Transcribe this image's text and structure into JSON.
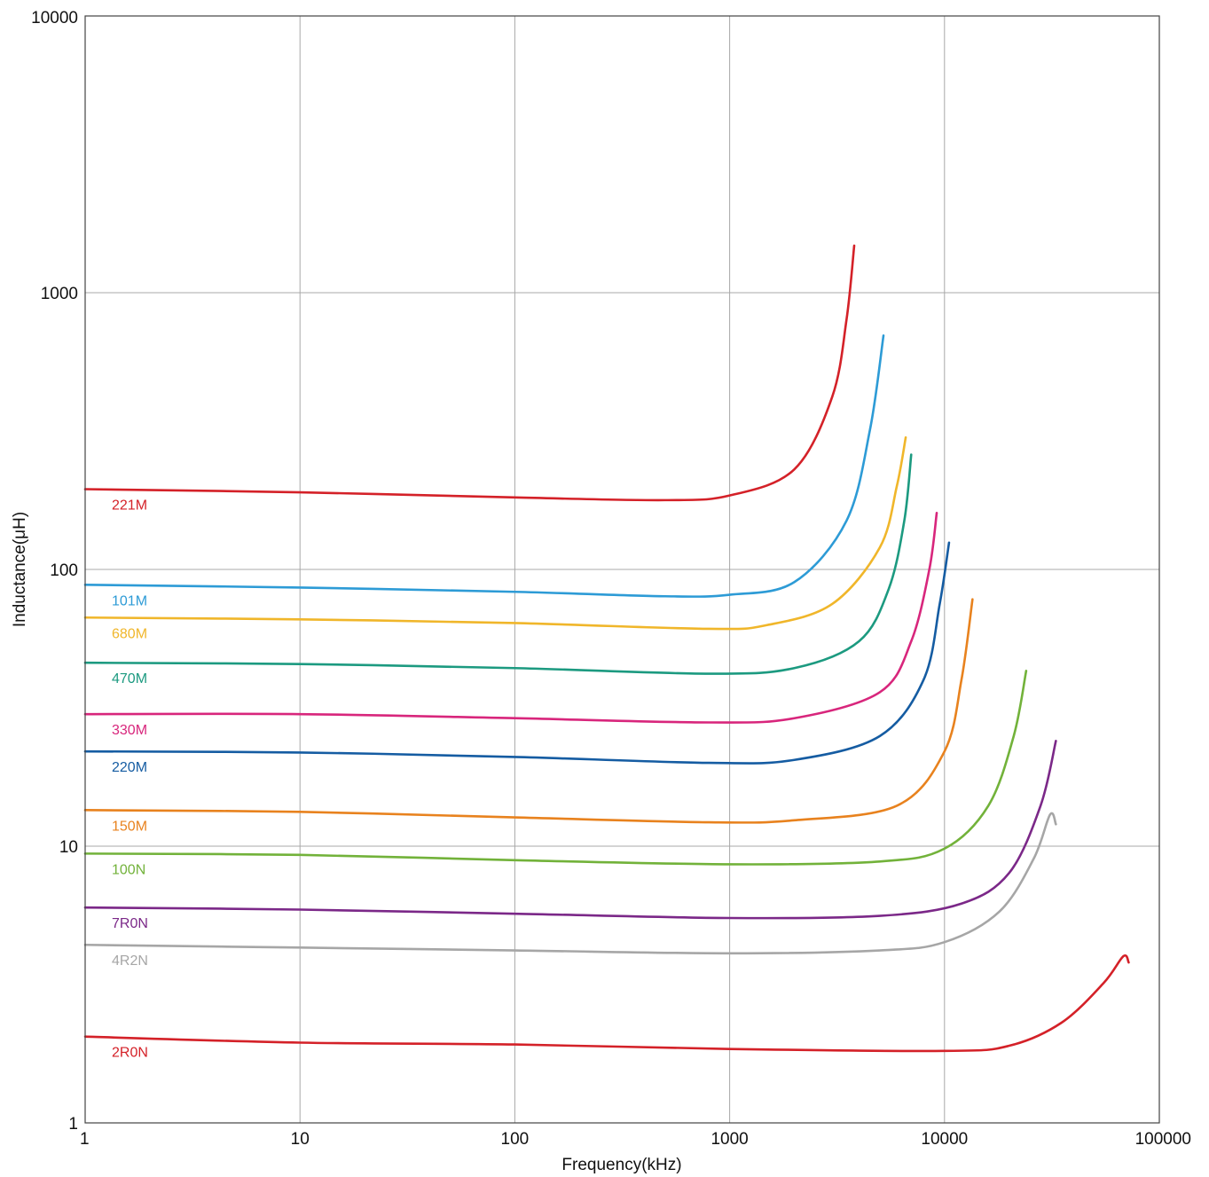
{
  "chart_data": {
    "type": "line",
    "xlabel": "Frequency(kHz)",
    "ylabel": "Inductance(μH)",
    "x_scale": "log",
    "y_scale": "log",
    "xlim": [
      1,
      100000
    ],
    "ylim": [
      1,
      10000
    ],
    "x_ticks": [
      "1",
      "10",
      "100",
      "1000",
      "10000",
      "100000"
    ],
    "y_ticks": [
      "1",
      "10",
      "100",
      "1000",
      "10000"
    ],
    "grid": true,
    "series": [
      {
        "name": "221M",
        "color": "#d42128",
        "x": [
          1,
          10,
          100,
          500,
          1000,
          2000,
          3000,
          3500,
          3800
        ],
        "y": [
          195,
          190,
          182,
          178,
          185,
          230,
          420,
          800,
          1480
        ]
      },
      {
        "name": "101M",
        "color": "#2d9bd6",
        "x": [
          1,
          10,
          100,
          500,
          1000,
          2000,
          3500,
          4500,
          5200
        ],
        "y": [
          88,
          86,
          83,
          80,
          81,
          90,
          150,
          320,
          700
        ]
      },
      {
        "name": "680M",
        "color": "#f0b62a",
        "x": [
          1,
          10,
          100,
          800,
          1500,
          3000,
          5000,
          6000,
          6600
        ],
        "y": [
          67,
          66,
          64,
          61,
          63,
          75,
          120,
          200,
          300
        ]
      },
      {
        "name": "470M",
        "color": "#1c9a80",
        "x": [
          1,
          10,
          100,
          800,
          2000,
          4000,
          5500,
          6500,
          7000
        ],
        "y": [
          46,
          45.5,
          44,
          42,
          44,
          55,
          85,
          150,
          260
        ]
      },
      {
        "name": "330M",
        "color": "#d8267c",
        "x": [
          1,
          10,
          100,
          800,
          2000,
          5000,
          7000,
          8500,
          9200
        ],
        "y": [
          30,
          30,
          29,
          28,
          29,
          36,
          55,
          100,
          160
        ]
      },
      {
        "name": "220M",
        "color": "#155ca2",
        "x": [
          1,
          10,
          100,
          800,
          2000,
          5000,
          8000,
          9500,
          10500
        ],
        "y": [
          22,
          21.8,
          21,
          20,
          20.5,
          25,
          40,
          75,
          125
        ]
      },
      {
        "name": "150M",
        "color": "#e8821e",
        "x": [
          1,
          10,
          100,
          800,
          2000,
          6000,
          10000,
          12000,
          13500
        ],
        "y": [
          13.5,
          13.3,
          12.7,
          12.2,
          12.4,
          14,
          22,
          40,
          78
        ]
      },
      {
        "name": "100N",
        "color": "#72b23a",
        "x": [
          1,
          10,
          100,
          1000,
          5000,
          10000,
          16000,
          21000,
          24000
        ],
        "y": [
          9.4,
          9.3,
          8.9,
          8.6,
          8.8,
          9.8,
          14,
          25,
          43
        ]
      },
      {
        "name": "7R0N",
        "color": "#7b2888",
        "x": [
          1,
          10,
          100,
          1000,
          5000,
          12000,
          20000,
          28000,
          33000
        ],
        "y": [
          6.0,
          5.9,
          5.7,
          5.5,
          5.6,
          6.2,
          8,
          14,
          24
        ]
      },
      {
        "name": "4R2N",
        "color": "#a6a6a6",
        "x": [
          1,
          10,
          100,
          1000,
          5000,
          10000,
          18000,
          26000,
          31000,
          33000
        ],
        "y": [
          4.4,
          4.3,
          4.2,
          4.1,
          4.2,
          4.5,
          5.8,
          9,
          13,
          12
        ]
      },
      {
        "name": "2R0N",
        "color": "#d42128",
        "x": [
          1,
          10,
          100,
          1000,
          10000,
          20000,
          35000,
          55000,
          68000,
          72000
        ],
        "y": [
          2.05,
          1.95,
          1.92,
          1.85,
          1.82,
          1.9,
          2.3,
          3.2,
          4.0,
          3.8
        ]
      }
    ]
  }
}
